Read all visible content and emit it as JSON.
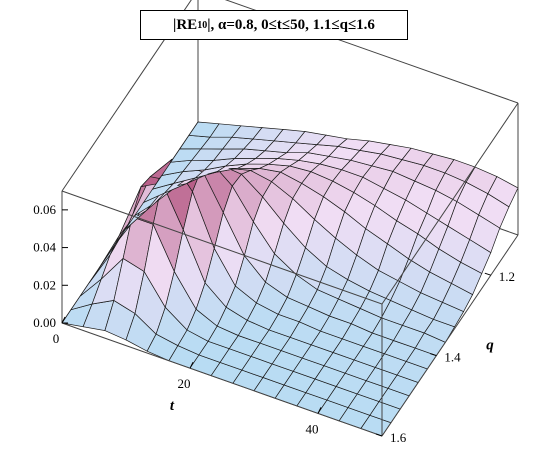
{
  "title": {
    "prefix": "|RE",
    "sub": "10",
    "suffix": "|, α=0.8, 0≤t≤50, 1.1≤q≤1.6"
  },
  "chart_data": {
    "type": "surface3d",
    "xlabel": "t",
    "ylabel": "q",
    "zlabel": "",
    "xlim": [
      0,
      50
    ],
    "ylim": [
      1.1,
      1.6
    ],
    "zlim": [
      0,
      0.07
    ],
    "x_ticks": [
      0,
      20,
      40
    ],
    "y_ticks": [
      1.2,
      1.4,
      1.6
    ],
    "z_ticks": [
      "0.00",
      "0.02",
      "0.04",
      "0.06"
    ],
    "t_grid": [
      0,
      3.3,
      6.7,
      10,
      13.3,
      16.7,
      20,
      23.3,
      26.7,
      30,
      33.3,
      36.7,
      40,
      43.3,
      46.7,
      50
    ],
    "q_grid": [
      1.1,
      1.133,
      1.167,
      1.2,
      1.233,
      1.267,
      1.3,
      1.333,
      1.367,
      1.4,
      1.433,
      1.467,
      1.5,
      1.533,
      1.567,
      1.6
    ],
    "values_rows_by_q": [
      [
        0.0,
        0.003,
        0.006,
        0.009,
        0.012,
        0.015,
        0.017,
        0.019,
        0.022,
        0.024,
        0.026,
        0.027,
        0.028,
        0.028,
        0.027,
        0.025
      ],
      [
        0.0,
        0.003,
        0.007,
        0.01,
        0.013,
        0.016,
        0.019,
        0.022,
        0.024,
        0.026,
        0.027,
        0.028,
        0.028,
        0.027,
        0.025,
        0.022
      ],
      [
        0.0,
        0.004,
        0.008,
        0.012,
        0.015,
        0.018,
        0.022,
        0.024,
        0.026,
        0.027,
        0.028,
        0.027,
        0.026,
        0.024,
        0.021,
        0.018
      ],
      [
        0.0,
        0.005,
        0.009,
        0.014,
        0.018,
        0.022,
        0.025,
        0.027,
        0.028,
        0.028,
        0.026,
        0.024,
        0.021,
        0.018,
        0.015,
        0.012
      ],
      [
        0.0,
        0.006,
        0.011,
        0.017,
        0.022,
        0.026,
        0.029,
        0.03,
        0.029,
        0.027,
        0.024,
        0.02,
        0.017,
        0.013,
        0.01,
        0.008
      ],
      [
        0.0,
        0.007,
        0.014,
        0.021,
        0.027,
        0.031,
        0.033,
        0.031,
        0.028,
        0.024,
        0.019,
        0.015,
        0.011,
        0.008,
        0.006,
        0.004
      ],
      [
        0.0,
        0.009,
        0.018,
        0.027,
        0.034,
        0.037,
        0.035,
        0.03,
        0.023,
        0.017,
        0.012,
        0.008,
        0.006,
        0.004,
        0.003,
        0.002
      ],
      [
        0.0,
        0.011,
        0.024,
        0.036,
        0.043,
        0.042,
        0.034,
        0.024,
        0.015,
        0.009,
        0.006,
        0.004,
        0.003,
        0.002,
        0.001,
        0.001
      ],
      [
        0.0,
        0.014,
        0.032,
        0.047,
        0.052,
        0.043,
        0.028,
        0.015,
        0.008,
        0.004,
        0.003,
        0.002,
        0.001,
        0.001,
        0.001,
        0.0
      ],
      [
        0.0,
        0.018,
        0.042,
        0.058,
        0.055,
        0.036,
        0.017,
        0.007,
        0.003,
        0.002,
        0.001,
        0.001,
        0.0,
        0.0,
        0.0,
        0.0
      ],
      [
        0.0,
        0.021,
        0.05,
        0.063,
        0.05,
        0.024,
        0.008,
        0.003,
        0.001,
        0.001,
        0.0,
        0.0,
        0.0,
        0.0,
        0.0,
        0.0
      ],
      [
        0.0,
        0.022,
        0.052,
        0.058,
        0.037,
        0.013,
        0.004,
        0.001,
        0.0,
        0.0,
        0.0,
        0.0,
        0.0,
        0.0,
        0.0,
        0.0
      ],
      [
        0.0,
        0.019,
        0.043,
        0.043,
        0.022,
        0.006,
        0.001,
        0.0,
        0.0,
        0.0,
        0.0,
        0.0,
        0.0,
        0.0,
        0.0,
        0.0
      ],
      [
        0.0,
        0.013,
        0.028,
        0.025,
        0.01,
        0.002,
        0.0,
        0.0,
        0.0,
        0.0,
        0.0,
        0.0,
        0.0,
        0.0,
        0.0,
        0.0
      ],
      [
        0.0,
        0.007,
        0.013,
        0.01,
        0.003,
        0.001,
        0.0,
        0.0,
        0.0,
        0.0,
        0.0,
        0.0,
        0.0,
        0.0,
        0.0,
        0.0
      ],
      [
        0.0,
        0.002,
        0.004,
        0.003,
        0.001,
        0.0,
        0.0,
        0.0,
        0.0,
        0.0,
        0.0,
        0.0,
        0.0,
        0.0,
        0.0,
        0.0
      ]
    ],
    "box": true,
    "colors": {
      "low": "#b8dcf3",
      "mid": "#f0ddf4",
      "high": "#a0285a",
      "mesh": "#1a1a1a"
    }
  }
}
